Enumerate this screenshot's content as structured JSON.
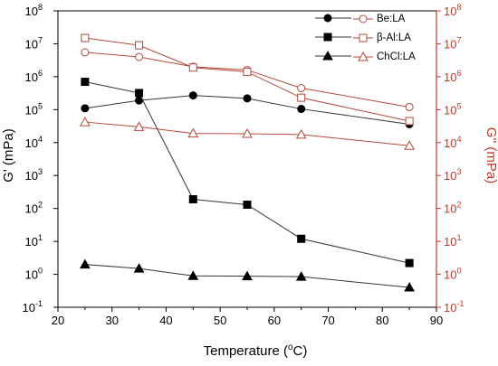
{
  "chart_data": {
    "type": "line",
    "xlabel_main": "Temperature (",
    "xlabel_sup": "o",
    "xlabel_tail": "C)",
    "ylabel_left": "G' (mPa)",
    "ylabel_right": "G'' (mPa)",
    "xlim": [
      20,
      90
    ],
    "ylim": [
      0.1,
      100000000
    ],
    "yscale": "log",
    "x_ticks": [
      "20",
      "30",
      "40",
      "50",
      "60",
      "70",
      "80",
      "90"
    ],
    "y_ticks": [
      {
        "base": "10",
        "exp": "-1"
      },
      {
        "base": "10",
        "exp": "0"
      },
      {
        "base": "10",
        "exp": "1"
      },
      {
        "base": "10",
        "exp": "2"
      },
      {
        "base": "10",
        "exp": "3"
      },
      {
        "base": "10",
        "exp": "4"
      },
      {
        "base": "10",
        "exp": "5"
      },
      {
        "base": "10",
        "exp": "6"
      },
      {
        "base": "10",
        "exp": "7"
      },
      {
        "base": "10",
        "exp": "8"
      }
    ],
    "x": [
      25,
      35,
      45,
      55,
      65,
      85
    ],
    "legend_position": "top-right",
    "colors": {
      "left_axis": "#000000",
      "right_axis": "#c0392b",
      "g_prime_line": "#333333",
      "g_double_prime_line": "#b5483a"
    },
    "series": [
      {
        "name": "Be:LA",
        "marker": "circle",
        "axis": "left",
        "values": [
          110000,
          190000,
          270000,
          220000,
          105000,
          36000
        ]
      },
      {
        "name": "β-Al:LA",
        "marker": "square",
        "axis": "left",
        "values": [
          700000,
          320000,
          190,
          130,
          12,
          2.2
        ]
      },
      {
        "name": "ChCl:LA",
        "marker": "triangle",
        "axis": "left",
        "values": [
          2.0,
          1.5,
          0.9,
          0.88,
          0.85,
          0.4
        ]
      },
      {
        "name": "Be:LA",
        "marker": "circle",
        "axis": "right",
        "values": [
          5500000,
          4000000,
          2000000,
          1600000,
          450000,
          120000
        ]
      },
      {
        "name": "β-Al:LA",
        "marker": "square",
        "axis": "right",
        "values": [
          15000000,
          9000000,
          1900000,
          1400000,
          230000,
          45000
        ]
      },
      {
        "name": "ChCl:LA",
        "marker": "triangle",
        "axis": "right",
        "values": [
          42000,
          30000,
          19000,
          18500,
          17500,
          8000
        ]
      }
    ],
    "legend": [
      "Be:LA",
      "β-Al:LA",
      "ChCl:LA"
    ]
  }
}
